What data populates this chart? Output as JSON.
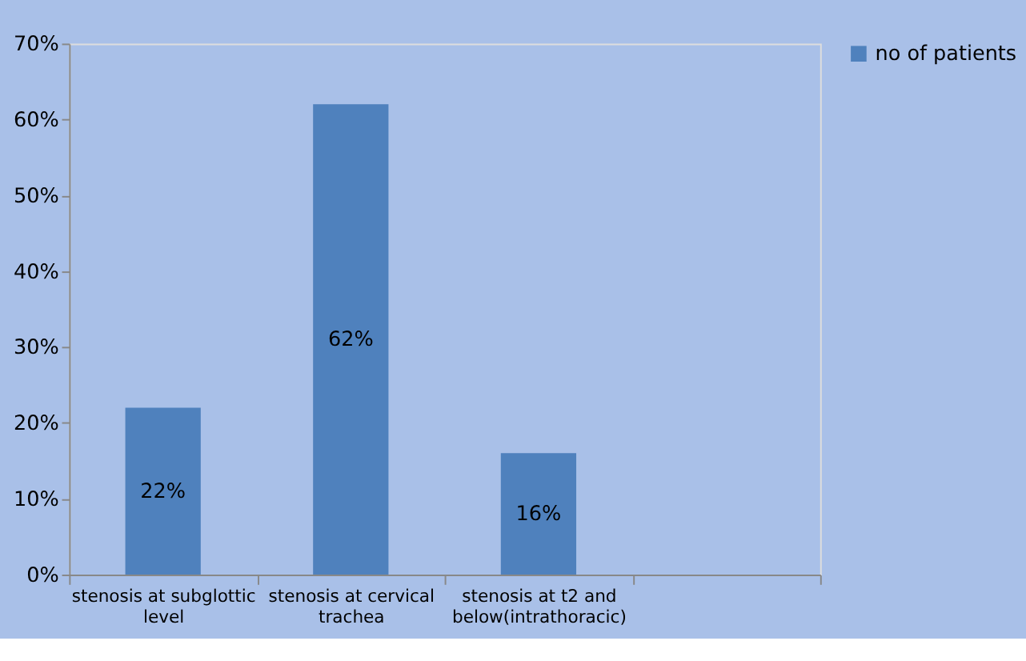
{
  "chart_data": {
    "type": "bar",
    "categories": [
      "stenosis at subglottic level",
      "stenosis at cervical trachea",
      "stenosis at t2 and below(intrathoracic)",
      null
    ],
    "series": [
      {
        "name": "no of patients",
        "color": "#4f81bd",
        "values": [
          22,
          62,
          16,
          null
        ],
        "value_labels": [
          "22%",
          "62%",
          "16%",
          null
        ]
      }
    ],
    "ylim": [
      0,
      70
    ],
    "yticks": [
      {
        "value": 0,
        "label": "0%"
      },
      {
        "value": 10,
        "label": "10%"
      },
      {
        "value": 20,
        "label": "20%"
      },
      {
        "value": 30,
        "label": "30%"
      },
      {
        "value": 40,
        "label": "40%"
      },
      {
        "value": 50,
        "label": "50%"
      },
      {
        "value": 60,
        "label": "60%"
      },
      {
        "value": 70,
        "label": "70%"
      }
    ],
    "grid": false,
    "legend": "right"
  }
}
